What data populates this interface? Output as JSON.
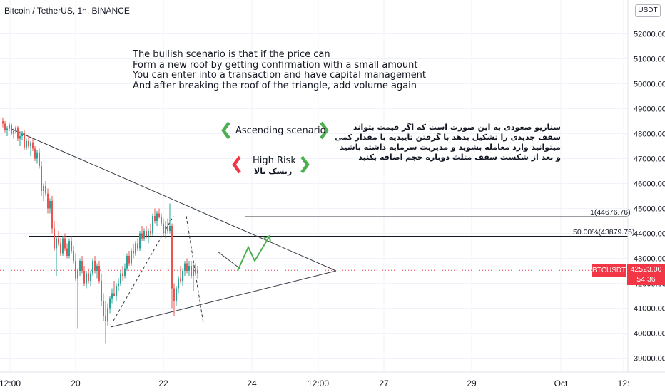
{
  "header": {
    "symbol_title": "Bitcoin / TetherUS, 1h, BINANCE",
    "currency_badge": "USDT"
  },
  "annotations": {
    "english_note": "The bullish scenario is that if the price can\nForm a new roof by getting confirmation with a small amount\nYou can enter into a transaction and have capital management\nAnd after breaking the roof of the triangle, add volume again",
    "persian_note": "سناریو صعودی به این صورت است که اگر قیمت بتواند\nسقف جدیدی را تشکیل بدهد با گرفتن تاییدیه با مقدار کمی\nمیتوانید وارد معامله بشوید و مدیریت سرمایه داشته باشید\nو بعد از شکست سقف مثلث دوباره حجم اضافه بکنید",
    "ascending_label": "Ascending scenario",
    "high_risk_label": "High Risk",
    "high_risk_fa": "ریسک بالا"
  },
  "price_tag": {
    "ticker": "BTCUSDT",
    "price": "42523.00",
    "countdown": "54:36"
  },
  "colors": {
    "up": "#26a69a",
    "down": "#ef5350",
    "accent_green": "#4caf50",
    "accent_red": "#f23645",
    "grid": "#f0f3fa"
  },
  "chart_data": {
    "type": "candlestick",
    "title": "Bitcoin / TetherUS, 1h, BINANCE",
    "ylim": [
      38400,
      53600
    ],
    "y_ticks": [
      39000,
      40000,
      41000,
      42000,
      43000,
      44000,
      45000,
      46000,
      47000,
      48000,
      49000,
      50000,
      51000,
      52000
    ],
    "y_tick_labels": [
      "39000.00",
      "40000.00",
      "41000.00",
      "42000.00",
      "43000.00",
      "44000.00",
      "45000.00",
      "46000.00",
      "47000.00",
      "48000.00",
      "49000.00",
      "50000.00",
      "51000.00",
      "52000.00"
    ],
    "x_tick_labels": [
      "12:00",
      "20",
      "22",
      "24",
      "12:00",
      "27",
      "29",
      "Oct",
      "12:"
    ],
    "current_price": 42523.0,
    "levels": [
      {
        "label": "1(44676.76)",
        "value": 44676.76
      },
      {
        "label": "50.00%(43879.75)",
        "value": 43879.75
      }
    ],
    "candles_ohlc": [
      [
        48500,
        48650,
        48250,
        48400
      ],
      [
        48400,
        48500,
        48050,
        48150
      ],
      [
        48150,
        48300,
        47900,
        48200
      ],
      [
        48200,
        48450,
        48100,
        48350
      ],
      [
        48350,
        48400,
        47950,
        48000
      ],
      [
        48000,
        48200,
        47800,
        48100
      ],
      [
        48100,
        48300,
        48000,
        48250
      ],
      [
        48250,
        48300,
        47700,
        47800
      ],
      [
        47800,
        48100,
        47500,
        47900
      ],
      [
        47900,
        48100,
        47750,
        48050
      ],
      [
        48050,
        48150,
        47350,
        47450
      ],
      [
        47450,
        47800,
        47350,
        47700
      ],
      [
        47700,
        47900,
        47400,
        47500
      ],
      [
        47500,
        47700,
        47100,
        47650
      ],
      [
        47650,
        47800,
        47300,
        47400
      ],
      [
        47400,
        47500,
        46900,
        47000
      ],
      [
        47000,
        47350,
        46800,
        47250
      ],
      [
        47250,
        47400,
        46600,
        46700
      ],
      [
        46700,
        46900,
        45500,
        45700
      ],
      [
        45700,
        46000,
        45300,
        45900
      ],
      [
        45900,
        46100,
        45500,
        45600
      ],
      [
        45600,
        45800,
        44800,
        45000
      ],
      [
        45000,
        45400,
        44800,
        45300
      ],
      [
        45300,
        45500,
        44000,
        44200
      ],
      [
        44200,
        44500,
        43300,
        43400
      ],
      [
        43400,
        43900,
        42300,
        43800
      ],
      [
        43800,
        44100,
        43500,
        43600
      ],
      [
        43600,
        43800,
        43100,
        43200
      ],
      [
        43200,
        43900,
        43100,
        43800
      ],
      [
        43800,
        44000,
        43300,
        43400
      ],
      [
        43400,
        43600,
        43000,
        43100
      ],
      [
        43100,
        43800,
        43000,
        43700
      ],
      [
        43700,
        43900,
        43200,
        43300
      ],
      [
        43300,
        43500,
        42800,
        42900
      ],
      [
        42900,
        43200,
        42100,
        42200
      ],
      [
        42200,
        42600,
        40200,
        42500
      ],
      [
        42500,
        43000,
        42300,
        42900
      ],
      [
        42900,
        43100,
        42400,
        42500
      ],
      [
        42500,
        42700,
        41900,
        42000
      ],
      [
        42000,
        42500,
        41800,
        42400
      ],
      [
        42400,
        42600,
        42000,
        42100
      ],
      [
        42100,
        42500,
        41900,
        42400
      ],
      [
        42400,
        43000,
        42300,
        42900
      ],
      [
        42900,
        43100,
        42400,
        42500
      ],
      [
        42500,
        42800,
        42200,
        42700
      ],
      [
        42700,
        42900,
        42000,
        42100
      ],
      [
        42100,
        42400,
        41100,
        41300
      ],
      [
        41300,
        41600,
        40500,
        40700
      ],
      [
        40700,
        41300,
        39600,
        40500
      ],
      [
        40500,
        41200,
        40300,
        41000
      ],
      [
        41000,
        41500,
        40800,
        41400
      ],
      [
        41400,
        41800,
        41200,
        41600
      ],
      [
        41600,
        42100,
        41500,
        41500
      ],
      [
        41500,
        42000,
        41300,
        41900
      ],
      [
        41900,
        42200,
        41700,
        42000
      ],
      [
        42000,
        42500,
        41900,
        42400
      ],
      [
        42400,
        42700,
        42100,
        42300
      ],
      [
        42300,
        42800,
        42200,
        42600
      ],
      [
        42600,
        43200,
        42500,
        43100
      ],
      [
        43100,
        43300,
        42700,
        42800
      ],
      [
        42800,
        43400,
        42700,
        43300
      ],
      [
        43300,
        43600,
        43000,
        43200
      ],
      [
        43200,
        43700,
        43100,
        43600
      ],
      [
        43600,
        43800,
        43300,
        43400
      ],
      [
        43400,
        44100,
        43300,
        44000
      ],
      [
        44000,
        44300,
        43700,
        43800
      ],
      [
        43800,
        44200,
        43700,
        44100
      ],
      [
        44100,
        44300,
        43800,
        43900
      ],
      [
        43900,
        44200,
        43600,
        44100
      ],
      [
        44100,
        44400,
        43900,
        44000
      ],
      [
        44000,
        44800,
        43900,
        44700
      ],
      [
        44700,
        45000,
        44400,
        44500
      ],
      [
        44500,
        44900,
        44300,
        44800
      ],
      [
        44800,
        45000,
        44600,
        44650
      ],
      [
        44650,
        44800,
        44300,
        44400
      ],
      [
        44400,
        44600,
        43900,
        44000
      ],
      [
        44000,
        44500,
        43800,
        44300
      ],
      [
        44300,
        44600,
        44000,
        44100
      ],
      [
        44100,
        45200,
        44000,
        44300
      ],
      [
        44300,
        44400,
        41000,
        41800
      ],
      [
        41800,
        42000,
        40700,
        41300
      ],
      [
        41300,
        41900,
        41100,
        41800
      ],
      [
        41800,
        42300,
        41600,
        42200
      ],
      [
        42200,
        42700,
        42000,
        42100
      ],
      [
        42100,
        42600,
        41900,
        42500
      ],
      [
        42500,
        42900,
        42300,
        42800
      ],
      [
        42800,
        43000,
        42400,
        42500
      ],
      [
        42500,
        42900,
        42300,
        42700
      ],
      [
        42700,
        42900,
        42200,
        42300
      ],
      [
        42300,
        42800,
        41700,
        42600
      ],
      [
        42600,
        42800,
        42300,
        42400
      ],
      [
        42400,
        42700,
        42200,
        42520
      ]
    ],
    "trendlines": [
      {
        "name": "descending-resistance",
        "from": [
          4,
          48200
        ],
        "to": [
          156,
          42500
        ]
      },
      {
        "name": "ascending-support",
        "from": [
          51,
          40250
        ],
        "to": [
          156,
          42500
        ]
      },
      {
        "name": "small-channel-top",
        "from": [
          101,
          43250
        ],
        "to": [
          111,
          42600
        ]
      },
      {
        "name": "dashed-rally",
        "from": [
          52,
          40500
        ],
        "to": [
          80,
          44700
        ]
      },
      {
        "name": "dashed-drop",
        "from": [
          86,
          44700
        ],
        "to": [
          94,
          40400
        ]
      }
    ],
    "projected_path": [
      [
        110,
        42500
      ],
      [
        115,
        43450
      ],
      [
        118,
        42900
      ],
      [
        125,
        43900
      ]
    ]
  }
}
